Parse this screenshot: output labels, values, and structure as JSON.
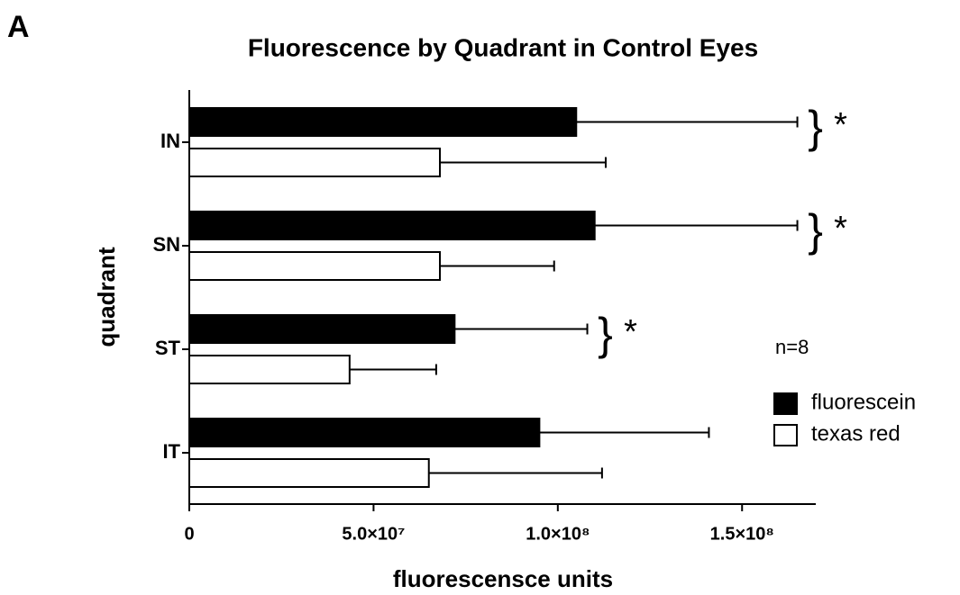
{
  "chart_data": {
    "type": "hbar",
    "panel_label": "A",
    "title": "Fluorescence by Quadrant in Control Eyes",
    "xlabel": "fluorescensce units",
    "ylabel": "quadrant",
    "categories": [
      "IN",
      "SN",
      "ST",
      "IT"
    ],
    "series": [
      {
        "name": "fluorescein",
        "color": "#000000",
        "values": [
          105000000,
          110000000,
          72000000,
          95000000
        ],
        "errors": [
          60000000,
          55000000,
          36000000,
          46000000
        ]
      },
      {
        "name": "texas red",
        "color": "#ffffff",
        "values": [
          68000000,
          68000000,
          43500000,
          65000000
        ],
        "errors": [
          45000000,
          31000000,
          23500000,
          47000000
        ]
      }
    ],
    "xlim": [
      0,
      170000000
    ],
    "xticks": [
      0,
      {
        "value": 50000000,
        "label": "5.0×10⁷"
      },
      {
        "value": 100000000,
        "label": "1.0×10⁸"
      },
      {
        "value": 150000000,
        "label": "1.5×10⁸"
      }
    ],
    "annotations": [
      "*",
      "*",
      "*"
    ],
    "note": "n=8",
    "legend": "right"
  }
}
